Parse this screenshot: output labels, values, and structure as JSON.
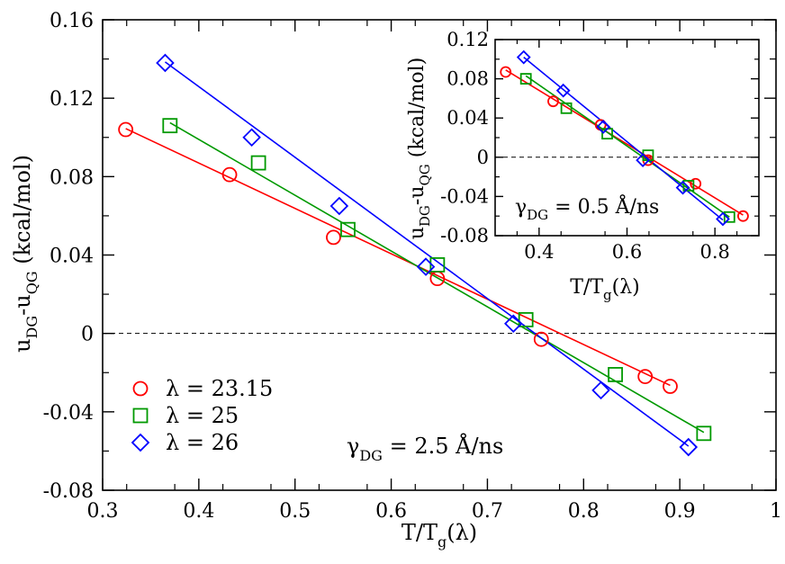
{
  "chart_data": [
    {
      "type": "scatter",
      "title": "",
      "xlabel": "T/Tg(λ)",
      "ylabel": "uDG-uQG (kcal/mol)",
      "xlim": [
        0.3,
        1.0
      ],
      "ylim": [
        -0.08,
        0.16
      ],
      "x_ticks": [
        "0.3",
        "0.4",
        "0.5",
        "0.6",
        "0.7",
        "0.8",
        "0.9",
        "1"
      ],
      "y_ticks": [
        "-0.08",
        "-0.04",
        "0",
        "0.04",
        "0.08",
        "0.12",
        "0.16"
      ],
      "annotation": "γDG = 2.5 Å/ns",
      "series": [
        {
          "name": "λ = 23.15",
          "color": "#ff0000",
          "marker": "circle",
          "x": [
            0.324,
            0.432,
            0.54,
            0.648,
            0.756,
            0.864,
            0.89
          ],
          "y": [
            0.104,
            0.081,
            0.049,
            0.028,
            -0.003,
            -0.022,
            -0.027
          ],
          "fit": {
            "x": [
              0.324,
              0.89
            ],
            "y": [
              0.1045,
              -0.0265
            ]
          }
        },
        {
          "name": "λ = 25",
          "color": "#009900",
          "marker": "square",
          "x": [
            0.37,
            0.462,
            0.555,
            0.648,
            0.74,
            0.833,
            0.925
          ],
          "y": [
            0.106,
            0.087,
            0.053,
            0.035,
            0.007,
            -0.021,
            -0.051
          ],
          "fit": {
            "x": [
              0.37,
              0.925
            ],
            "y": [
              0.1075,
              -0.0505
            ]
          }
        },
        {
          "name": "λ = 26",
          "color": "#0000ff",
          "marker": "diamond",
          "x": [
            0.365,
            0.455,
            0.546,
            0.636,
            0.727,
            0.818,
            0.909
          ],
          "y": [
            0.138,
            0.1,
            0.065,
            0.034,
            0.005,
            -0.029,
            -0.058
          ],
          "fit": {
            "x": [
              0.365,
              0.909
            ],
            "y": [
              0.1385,
              -0.0575
            ]
          }
        }
      ]
    },
    {
      "type": "scatter",
      "title": "",
      "xlabel": "T/Tg(λ)",
      "ylabel": "uDG-uQG (kcal/mol)",
      "xlim": [
        0.3,
        0.9
      ],
      "ylim": [
        -0.08,
        0.12
      ],
      "x_ticks": [
        "0.4",
        "0.6",
        "0.8"
      ],
      "y_ticks": [
        "-0.08",
        "-0.04",
        "0",
        "0.04",
        "0.08",
        "0.12"
      ],
      "annotation": "γDG = 0.5 Å/ns",
      "series": [
        {
          "name": "λ = 23.15",
          "color": "#ff0000",
          "marker": "circle",
          "x": [
            0.324,
            0.432,
            0.54,
            0.648,
            0.756,
            0.864
          ],
          "y": [
            0.087,
            0.057,
            0.033,
            -0.003,
            -0.027,
            -0.06
          ],
          "fit": {
            "x": [
              0.324,
              0.864
            ],
            "y": [
              0.089,
              -0.059
            ]
          }
        },
        {
          "name": "λ = 25",
          "color": "#009900",
          "marker": "square",
          "x": [
            0.37,
            0.462,
            0.555,
            0.648,
            0.74,
            0.833
          ],
          "y": [
            0.08,
            0.05,
            0.024,
            0.002,
            -0.029,
            -0.061
          ],
          "fit": {
            "x": [
              0.37,
              0.833
            ],
            "y": [
              0.083,
              -0.061
            ]
          }
        },
        {
          "name": "λ = 26",
          "color": "#0000ff",
          "marker": "diamond",
          "x": [
            0.365,
            0.455,
            0.546,
            0.636,
            0.727,
            0.818
          ],
          "y": [
            0.102,
            0.068,
            0.031,
            -0.003,
            -0.031,
            -0.063
          ],
          "fit": {
            "x": [
              0.365,
              0.818
            ],
            "y": [
              0.102,
              -0.064
            ]
          }
        }
      ]
    }
  ]
}
